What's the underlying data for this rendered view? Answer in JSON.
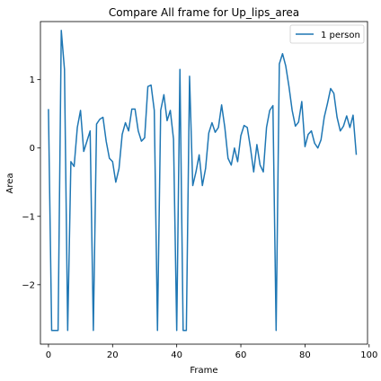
{
  "chart_data": {
    "type": "line",
    "title": "Compare All frame for Up_lips_area",
    "xlabel": "Frame",
    "ylabel": "Area",
    "xlim": [
      -2.5,
      99.5
    ],
    "ylim": [
      -2.87,
      1.85
    ],
    "xticks": [
      0,
      20,
      40,
      60,
      80,
      100
    ],
    "yticks": [
      -2,
      -1,
      0,
      1
    ],
    "ytick_labels": [
      "−2",
      "−1",
      "0",
      "1"
    ],
    "grid": false,
    "legend_position": "top-right",
    "colors": {
      "series": "#1f77b4"
    },
    "series": [
      {
        "name": "1 person",
        "x": [
          0,
          1,
          2,
          3,
          4,
          5,
          6,
          7,
          8,
          9,
          10,
          11,
          12,
          13,
          14,
          15,
          16,
          17,
          18,
          19,
          20,
          21,
          22,
          23,
          24,
          25,
          26,
          27,
          28,
          29,
          30,
          31,
          32,
          33,
          34,
          35,
          36,
          37,
          38,
          39,
          40,
          41,
          42,
          43,
          44,
          45,
          46,
          47,
          48,
          49,
          50,
          51,
          52,
          53,
          54,
          55,
          56,
          57,
          58,
          59,
          60,
          61,
          62,
          63,
          64,
          65,
          66,
          67,
          68,
          69,
          70,
          71,
          72,
          73,
          74,
          75,
          76,
          77,
          78,
          79,
          80,
          81,
          82,
          83,
          84,
          85,
          86,
          87,
          88,
          89,
          90,
          91,
          92,
          93,
          94,
          95,
          96
        ],
        "values": [
          0.57,
          -2.67,
          -2.67,
          -2.67,
          1.72,
          1.15,
          -2.67,
          -0.2,
          -0.27,
          0.3,
          0.55,
          -0.05,
          0.1,
          0.25,
          -2.67,
          0.35,
          0.42,
          0.45,
          0.1,
          -0.15,
          -0.2,
          -0.5,
          -0.3,
          0.2,
          0.37,
          0.25,
          0.57,
          0.57,
          0.25,
          0.1,
          0.15,
          0.9,
          0.92,
          0.55,
          -2.67,
          0.55,
          0.78,
          0.4,
          0.55,
          0.13,
          -2.67,
          1.15,
          -2.67,
          -2.67,
          1.05,
          -0.55,
          -0.35,
          -0.1,
          -0.55,
          -0.3,
          0.22,
          0.37,
          0.23,
          0.3,
          0.63,
          0.3,
          -0.15,
          -0.25,
          0.0,
          -0.2,
          0.18,
          0.33,
          0.3,
          0.0,
          -0.35,
          0.05,
          -0.25,
          -0.35,
          0.3,
          0.55,
          0.62,
          -2.67,
          1.23,
          1.38,
          1.2,
          0.9,
          0.55,
          0.32,
          0.38,
          0.68,
          0.02,
          0.2,
          0.25,
          0.07,
          0.0,
          0.12,
          0.45,
          0.65,
          0.87,
          0.8,
          0.45,
          0.25,
          0.32,
          0.47,
          0.3,
          0.48,
          -0.1
        ]
      }
    ]
  }
}
